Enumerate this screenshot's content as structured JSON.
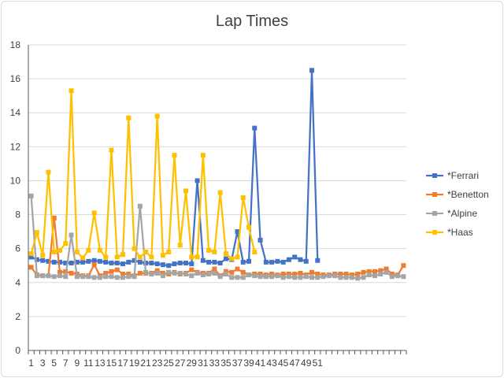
{
  "chart_data": {
    "type": "line",
    "title": "Lap Times",
    "xlabel": "",
    "ylabel": "",
    "ylim": [
      0,
      18
    ],
    "y_ticks": [
      0,
      2,
      4,
      6,
      8,
      10,
      12,
      14,
      16,
      18
    ],
    "x_labels": [
      "1",
      "3",
      "5",
      "7",
      "9",
      "11",
      "13",
      "15",
      "17",
      "19",
      "21",
      "23",
      "25",
      "27",
      "29",
      "31",
      "33",
      "35",
      "37",
      "39",
      "41",
      "43",
      "45",
      "47",
      "49",
      "51"
    ],
    "x_count": 66,
    "grid": "horizontal",
    "legend_position": "right",
    "series": [
      {
        "name": "*Ferrari",
        "color": "#4472c4",
        "values": [
          5.5,
          5.35,
          5.3,
          5.25,
          5.2,
          5.2,
          5.15,
          5.15,
          5.2,
          5.2,
          5.25,
          5.3,
          5.25,
          5.2,
          5.15,
          5.15,
          5.1,
          5.2,
          5.3,
          5.2,
          5.15,
          5.15,
          5.1,
          5.05,
          5.0,
          5.1,
          5.15,
          5.15,
          5.1,
          10.0,
          5.3,
          5.2,
          5.2,
          5.15,
          5.4,
          5.35,
          7.0,
          5.2,
          5.25,
          13.1,
          6.5,
          5.2,
          5.2,
          5.25,
          5.2,
          5.35,
          5.5,
          5.35,
          5.25,
          16.5,
          5.3
        ]
      },
      {
        "name": "*Benetton",
        "color": "#ed7d31",
        "values": [
          4.9,
          4.45,
          4.4,
          4.4,
          7.8,
          4.6,
          4.65,
          4.55,
          4.5,
          4.4,
          4.4,
          5.05,
          4.4,
          4.55,
          4.65,
          4.75,
          4.5,
          4.5,
          4.4,
          4.55,
          4.55,
          4.55,
          4.7,
          4.55,
          4.5,
          4.6,
          4.5,
          4.55,
          4.75,
          4.6,
          4.55,
          4.55,
          4.8,
          4.4,
          4.65,
          4.6,
          4.8,
          4.6,
          4.45,
          4.5,
          4.5,
          4.45,
          4.5,
          4.45,
          4.5,
          4.5,
          4.5,
          4.55,
          4.45,
          4.6,
          4.5,
          4.45,
          4.45,
          4.5,
          4.5,
          4.5,
          4.45,
          4.5,
          4.6,
          4.65,
          4.65,
          4.7,
          4.8,
          4.5,
          4.45,
          5.0
        ]
      },
      {
        "name": "*Alpine",
        "color": "#a5a5a5",
        "values": [
          9.1,
          4.4,
          4.4,
          4.4,
          4.35,
          4.4,
          4.35,
          6.8,
          4.35,
          4.35,
          4.35,
          4.3,
          4.3,
          4.35,
          4.35,
          4.3,
          4.3,
          4.35,
          4.35,
          8.5,
          4.6,
          4.5,
          4.55,
          4.4,
          4.6,
          4.55,
          4.55,
          4.5,
          4.4,
          4.55,
          4.45,
          4.5,
          4.55,
          4.35,
          4.5,
          4.3,
          4.3,
          4.3,
          4.45,
          4.4,
          4.35,
          4.35,
          4.35,
          4.4,
          4.3,
          4.35,
          4.3,
          4.3,
          4.35,
          4.3,
          4.3,
          4.35,
          4.4,
          4.4,
          4.3,
          4.3,
          4.3,
          4.25,
          4.3,
          4.45,
          4.4,
          4.5,
          4.6,
          4.35,
          4.4,
          4.35
        ]
      },
      {
        "name": "*Haas",
        "color": "#ffc000",
        "values": [
          5.7,
          6.95,
          5.6,
          10.5,
          5.8,
          5.9,
          6.3,
          15.3,
          5.8,
          5.45,
          5.9,
          8.1,
          5.9,
          5.5,
          11.8,
          5.5,
          5.65,
          13.7,
          6.0,
          5.5,
          5.8,
          5.5,
          13.8,
          5.6,
          5.8,
          11.5,
          6.2,
          9.4,
          5.5,
          5.5,
          11.5,
          5.9,
          5.8,
          9.3,
          5.7,
          5.4,
          5.5,
          9.0,
          7.25,
          5.8
        ]
      }
    ]
  }
}
